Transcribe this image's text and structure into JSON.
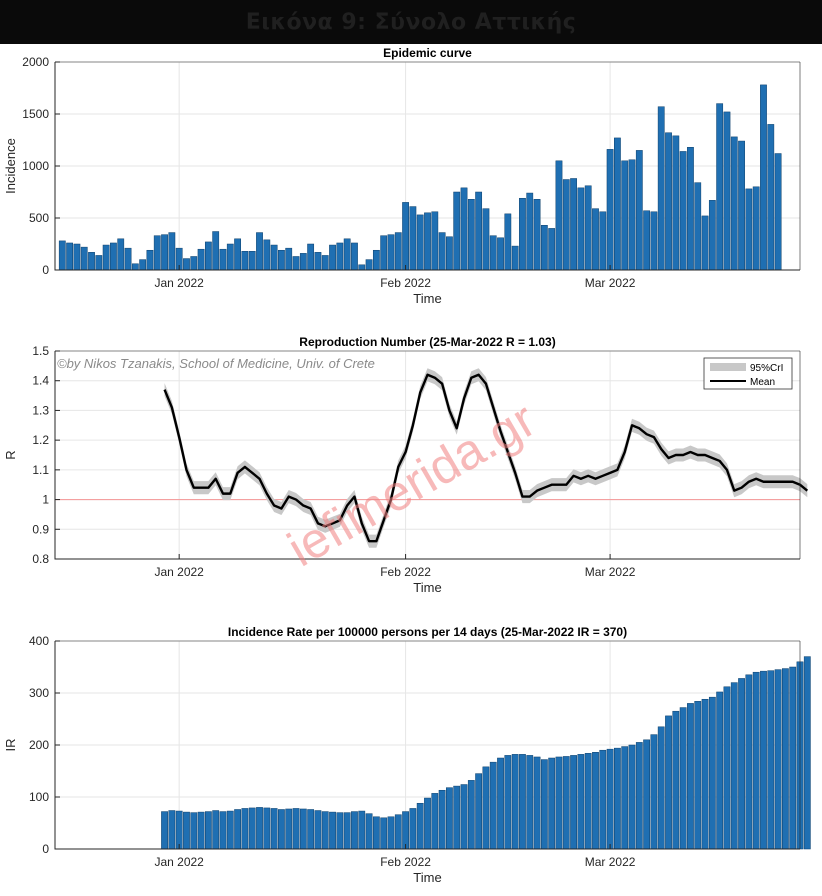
{
  "header": {
    "title": "Εικόνα 9: Σύνολο Αττικής"
  },
  "watermark": {
    "credit": "©by Nikos Tzanakis, School of Medicine, Univ. of Crete",
    "site": "iefimerida.gr"
  },
  "colors": {
    "bar": "#1f6fb2",
    "mean": "#000000",
    "band": "#c8c8c8",
    "threshold": "#f4a0a0",
    "watermark": "#f08080"
  },
  "chart_data": [
    {
      "type": "bar",
      "title": "Epidemic curve",
      "xlabel": "Time",
      "ylabel": "Incidence",
      "ylim": [
        0,
        2000
      ],
      "yticks": [
        0,
        500,
        1000,
        1500,
        2000
      ],
      "xticks": [
        {
          "day": 0,
          "label": "Jan 2022"
        },
        {
          "day": 31,
          "label": "Feb 2022"
        },
        {
          "day": 59,
          "label": "Mar 2022"
        }
      ],
      "xlim_day": [
        -17,
        85
      ],
      "grid": true,
      "x_first_day": -16,
      "values": [
        280,
        260,
        250,
        220,
        170,
        140,
        240,
        260,
        300,
        210,
        60,
        100,
        190,
        330,
        340,
        360,
        210,
        110,
        130,
        200,
        270,
        370,
        200,
        250,
        300,
        180,
        180,
        360,
        290,
        240,
        190,
        210,
        130,
        160,
        250,
        170,
        140,
        240,
        260,
        300,
        260,
        50,
        100,
        190,
        330,
        340,
        360,
        650,
        610,
        530,
        550,
        560,
        360,
        320,
        750,
        790,
        680,
        750,
        590,
        330,
        310,
        540,
        230,
        690,
        740,
        680,
        430,
        400,
        1050,
        870,
        880,
        790,
        810,
        590,
        560,
        1160,
        1270,
        1050,
        1060,
        1150,
        570,
        560,
        1570,
        1320,
        1290,
        1140,
        1180,
        840,
        520,
        670,
        1600,
        1520,
        1280,
        1240,
        780,
        800,
        1780,
        1400,
        1120
      ]
    },
    {
      "type": "line",
      "title": "Reproduction Number (25-Mar-2022 R = 1.03)",
      "xlabel": "Time",
      "ylabel": "R",
      "ylim": [
        0.8,
        1.5
      ],
      "yticks": [
        0.8,
        0.9,
        1,
        1.1,
        1.2,
        1.3,
        1.4,
        1.5
      ],
      "xticks": [
        {
          "day": 0,
          "label": "Jan 2022"
        },
        {
          "day": 31,
          "label": "Feb 2022"
        },
        {
          "day": 59,
          "label": "Mar 2022"
        }
      ],
      "xlim_day": [
        -17,
        85
      ],
      "grid": true,
      "threshold": 1,
      "legend": {
        "position": "top-right",
        "items": [
          "95%CrI",
          "Mean"
        ]
      },
      "x_first_day": -2,
      "mean": [
        1.37,
        1.31,
        1.21,
        1.1,
        1.04,
        1.04,
        1.04,
        1.07,
        1.02,
        1.02,
        1.09,
        1.11,
        1.09,
        1.07,
        1.02,
        0.98,
        0.97,
        1.01,
        1.0,
        0.98,
        0.97,
        0.92,
        0.91,
        0.92,
        0.93,
        0.98,
        1.01,
        0.92,
        0.86,
        0.86,
        0.93,
        1.0,
        1.11,
        1.16,
        1.25,
        1.36,
        1.42,
        1.41,
        1.39,
        1.3,
        1.24,
        1.34,
        1.41,
        1.42,
        1.39,
        1.31,
        1.23,
        1.16,
        1.09,
        1.01,
        1.01,
        1.03,
        1.04,
        1.05,
        1.05,
        1.05,
        1.08,
        1.07,
        1.08,
        1.07,
        1.08,
        1.09,
        1.1,
        1.16,
        1.25,
        1.24,
        1.22,
        1.21,
        1.17,
        1.14,
        1.15,
        1.15,
        1.16,
        1.15,
        1.15,
        1.14,
        1.13,
        1.1,
        1.03,
        1.04,
        1.06,
        1.07,
        1.06,
        1.06,
        1.06,
        1.06,
        1.06,
        1.05,
        1.03
      ]
    },
    {
      "type": "bar",
      "title": "Incidence Rate per 100000 persons per 14 days (25-Mar-2022 IR = 370)",
      "xlabel": "Time",
      "ylabel": "IR",
      "ylim": [
        0,
        400
      ],
      "yticks": [
        0,
        100,
        200,
        300,
        400
      ],
      "xticks": [
        {
          "day": 0,
          "label": "Jan 2022"
        },
        {
          "day": 31,
          "label": "Feb 2022"
        },
        {
          "day": 59,
          "label": "Mar 2022"
        }
      ],
      "xlim_day": [
        -17,
        85
      ],
      "grid": true,
      "x_first_day": -2,
      "values": [
        72,
        74,
        73,
        71,
        70,
        71,
        72,
        74,
        72,
        73,
        76,
        78,
        79,
        80,
        79,
        78,
        76,
        77,
        78,
        77,
        76,
        74,
        72,
        71,
        70,
        70,
        72,
        73,
        68,
        62,
        60,
        62,
        66,
        72,
        78,
        88,
        98,
        107,
        113,
        118,
        121,
        124,
        132,
        145,
        158,
        167,
        175,
        180,
        182,
        182,
        180,
        177,
        172,
        175,
        177,
        178,
        180,
        182,
        184,
        186,
        190,
        192,
        194,
        197,
        200,
        205,
        210,
        220,
        235,
        256,
        265,
        272,
        280,
        284,
        288,
        292,
        302,
        312,
        320,
        328,
        335,
        340,
        342,
        343,
        345,
        347,
        350,
        360,
        370
      ]
    }
  ]
}
